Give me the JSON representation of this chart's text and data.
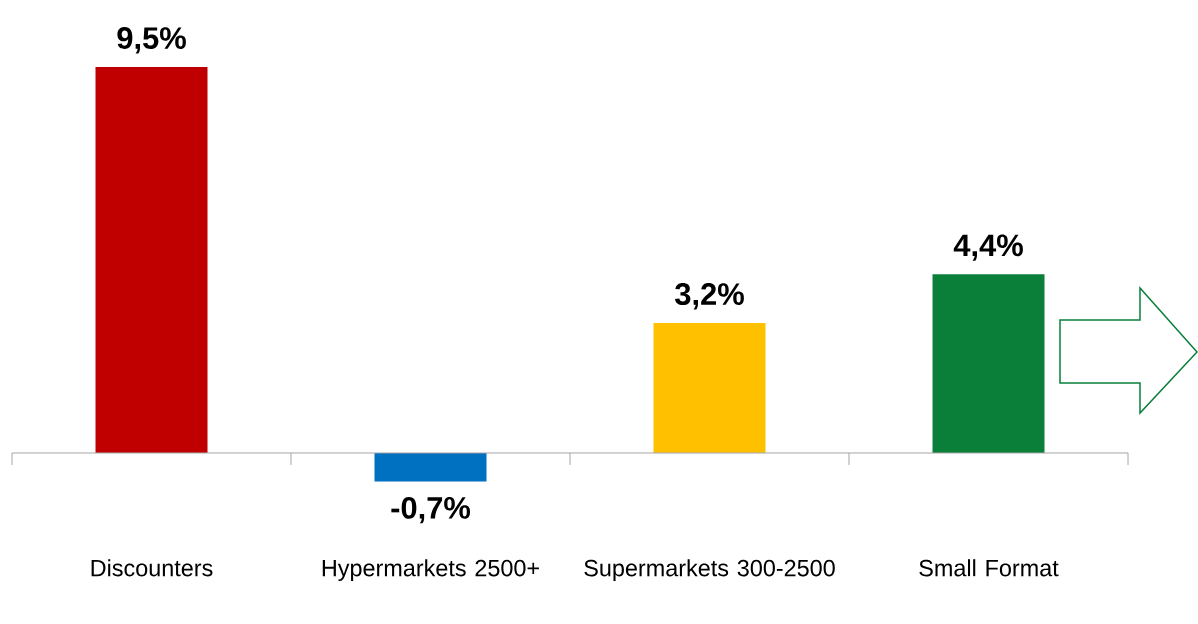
{
  "chart_data": {
    "type": "bar",
    "categories": [
      "Discounters",
      "Hypermarkets 2500+",
      "Supermarkets 300-2500",
      "Small Format"
    ],
    "values": [
      9.5,
      -0.7,
      3.2,
      4.4
    ],
    "colors": [
      "#c00000",
      "#0070c0",
      "#ffc000",
      "#0a7f3a"
    ],
    "value_labels": [
      "9,5%",
      "-0,7%",
      "3,2%",
      "4,4%"
    ]
  }
}
